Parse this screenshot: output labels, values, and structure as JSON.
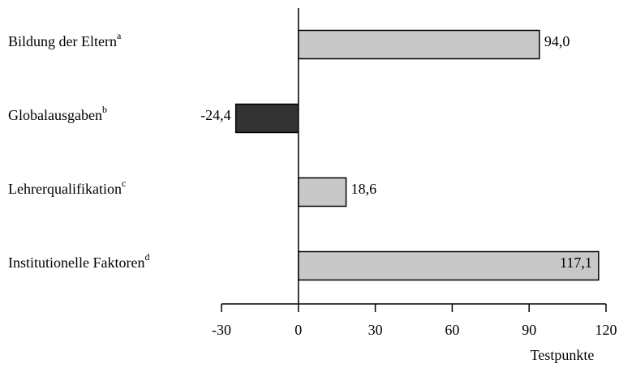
{
  "chart_data": {
    "type": "hbar",
    "categories": [
      "Bildung der Eltern",
      "Globalausgaben",
      "Lehrerqualifikation",
      "Institutionelle Faktoren"
    ],
    "category_notes": [
      "a",
      "b",
      "c",
      "d"
    ],
    "values": [
      94.0,
      -24.4,
      18.6,
      117.1
    ],
    "value_labels": [
      "94,0",
      "-24,4",
      "18,6",
      "117,1"
    ],
    "colors": [
      "#c8c8c8",
      "#333333",
      "#c8c8c8",
      "#c8c8c8"
    ],
    "xlabel": "Testpunkte",
    "xlim": [
      -30,
      120
    ],
    "xticks": [
      -30,
      0,
      30,
      60,
      90,
      120
    ]
  }
}
